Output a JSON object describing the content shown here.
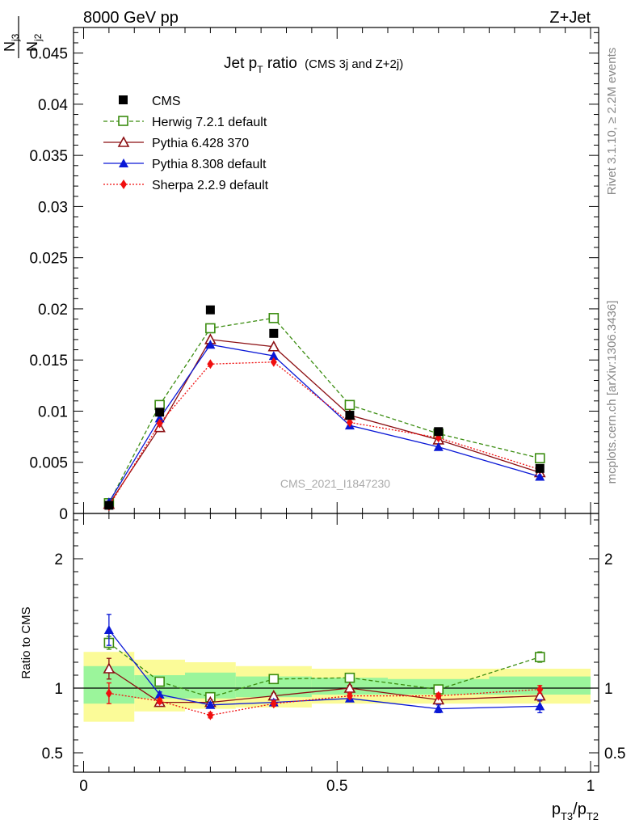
{
  "header": {
    "left": "8000 GeV pp",
    "right": "Z+Jet"
  },
  "side_labels": {
    "rivet": "Rivet 3.1.10, ≥ 2.2M events",
    "source": "mcplots.cern.ch [arXiv:1306.3436]"
  },
  "watermark": "CMS_2021_I1847230",
  "chart_data": [
    {
      "type": "line",
      "title": "Jet pT ratio",
      "title_main": "Jet p",
      "title_sub": "T",
      "title_tail": " ratio",
      "subtitle": "(CMS 3j and Z+2j)",
      "ylabel": "N_j3 / N_j2",
      "ylabel_num": "N",
      "ylabel_num_sub": "j3",
      "ylabel_den": "N",
      "ylabel_den_sub": "j2",
      "xlim": [
        0,
        1
      ],
      "ylim": [
        0,
        0.0475
      ],
      "yticks": [
        {
          "v": 0,
          "label": "0"
        },
        {
          "v": 0.005,
          "label": "0.005"
        },
        {
          "v": 0.01,
          "label": "0.01"
        },
        {
          "v": 0.015,
          "label": "0.015"
        },
        {
          "v": 0.02,
          "label": "0.02"
        },
        {
          "v": 0.025,
          "label": "0.025"
        },
        {
          "v": 0.03,
          "label": "0.03"
        },
        {
          "v": 0.035,
          "label": "0.035"
        },
        {
          "v": 0.04,
          "label": "0.04"
        },
        {
          "v": 0.045,
          "label": "0.045"
        }
      ],
      "legend": "top-left",
      "data": {
        "name": "CMS",
        "x": [
          0.05,
          0.15,
          0.25,
          0.375,
          0.525,
          0.7,
          0.9
        ],
        "values": [
          0.0008,
          0.0099,
          0.0199,
          0.0176,
          0.0096,
          0.008,
          0.0044
        ]
      },
      "series": [
        {
          "name": "Herwig 7.2.1 default",
          "color": "#3a8c0f",
          "dash": "5,3",
          "marker": "open-square",
          "x": [
            0.05,
            0.15,
            0.25,
            0.375,
            0.525,
            0.7,
            0.9
          ],
          "values": [
            0.001,
            0.0106,
            0.0181,
            0.0191,
            0.0106,
            0.0078,
            0.0054
          ]
        },
        {
          "name": "Pythia 6.428 370",
          "color": "#8b0e12",
          "dash": "",
          "marker": "open-triangle",
          "x": [
            0.05,
            0.15,
            0.25,
            0.375,
            0.525,
            0.7,
            0.9
          ],
          "values": [
            0.0009,
            0.0084,
            0.017,
            0.0163,
            0.0096,
            0.0072,
            0.004
          ]
        },
        {
          "name": "Pythia 8.308 default",
          "color": "#0a18d6",
          "dash": "",
          "marker": "filled-triangle",
          "x": [
            0.05,
            0.15,
            0.25,
            0.375,
            0.525,
            0.7,
            0.9
          ],
          "values": [
            0.0011,
            0.0093,
            0.0165,
            0.0154,
            0.0086,
            0.0065,
            0.0036
          ]
        },
        {
          "name": "Sherpa 2.2.9 default",
          "color": "#f00e0e",
          "dash": "2,2",
          "marker": "filled-diamond",
          "x": [
            0.05,
            0.15,
            0.25,
            0.375,
            0.525,
            0.7,
            0.9
          ],
          "values": [
            0.0007,
            0.0088,
            0.0146,
            0.0148,
            0.0089,
            0.0074,
            0.0043
          ]
        }
      ]
    },
    {
      "type": "line",
      "ylabel": "Ratio to CMS",
      "xlabel": "pT3/pT2",
      "xlabel_p1": "p",
      "xlabel_s1": "T3",
      "xlabel_slash": "/p",
      "xlabel_s2": "T2",
      "xlim": [
        0,
        1
      ],
      "ylim": [
        0.35,
        2.35
      ],
      "yticks": [
        {
          "v": 0.5,
          "label": "0.5"
        },
        {
          "v": 1,
          "label": "1"
        },
        {
          "v": 2,
          "label": "2"
        }
      ],
      "xticks": [
        {
          "v": 0,
          "label": "0"
        },
        {
          "v": 0.5,
          "label": "0.5"
        },
        {
          "v": 1,
          "label": "1"
        }
      ],
      "bands": {
        "bins": [
          [
            0,
            0.1
          ],
          [
            0.1,
            0.2
          ],
          [
            0.2,
            0.3
          ],
          [
            0.3,
            0.45
          ],
          [
            0.45,
            0.6
          ],
          [
            0.6,
            0.8
          ],
          [
            0.8,
            1.0
          ]
        ],
        "inner": [
          [
            0.88,
            1.17
          ],
          [
            0.92,
            1.1
          ],
          [
            0.92,
            1.12
          ],
          [
            0.93,
            1.09
          ],
          [
            0.95,
            1.08
          ],
          [
            0.95,
            1.07
          ],
          [
            0.95,
            1.09
          ]
        ],
        "outer": [
          [
            0.74,
            1.28
          ],
          [
            0.82,
            1.22
          ],
          [
            0.84,
            1.2
          ],
          [
            0.85,
            1.17
          ],
          [
            0.88,
            1.15
          ],
          [
            0.88,
            1.15
          ],
          [
            0.88,
            1.15
          ]
        ]
      },
      "series": [
        {
          "name": "Herwig 7.2.1 default",
          "x": [
            0.05,
            0.15,
            0.25,
            0.375,
            0.525,
            0.7,
            0.9
          ],
          "values": [
            1.35,
            1.05,
            0.93,
            1.07,
            1.08,
            0.99,
            1.24
          ],
          "err": [
            0.05,
            0.02,
            0.02,
            0.02,
            0.02,
            0.02,
            0.04
          ]
        },
        {
          "name": "Pythia 6.428 370",
          "x": [
            0.05,
            0.15,
            0.25,
            0.375,
            0.525,
            0.7,
            0.9
          ],
          "values": [
            1.15,
            0.89,
            0.89,
            0.94,
            1.0,
            0.91,
            0.94
          ],
          "err": [
            0.08,
            0.02,
            0.02,
            0.02,
            0.02,
            0.02,
            0.04
          ]
        },
        {
          "name": "Pythia 8.308 default",
          "x": [
            0.05,
            0.15,
            0.25,
            0.375,
            0.525,
            0.7,
            0.9
          ],
          "values": [
            1.45,
            0.95,
            0.87,
            0.89,
            0.92,
            0.84,
            0.86
          ],
          "err": [
            0.12,
            0.02,
            0.02,
            0.02,
            0.02,
            0.03,
            0.05
          ]
        },
        {
          "name": "Sherpa 2.2.9 default",
          "x": [
            0.05,
            0.15,
            0.25,
            0.375,
            0.525,
            0.7,
            0.9
          ],
          "values": [
            0.96,
            0.9,
            0.79,
            0.88,
            0.94,
            0.94,
            0.99
          ],
          "err": [
            0.08,
            0.02,
            0.02,
            0.02,
            0.02,
            0.02,
            0.03
          ]
        }
      ]
    }
  ]
}
